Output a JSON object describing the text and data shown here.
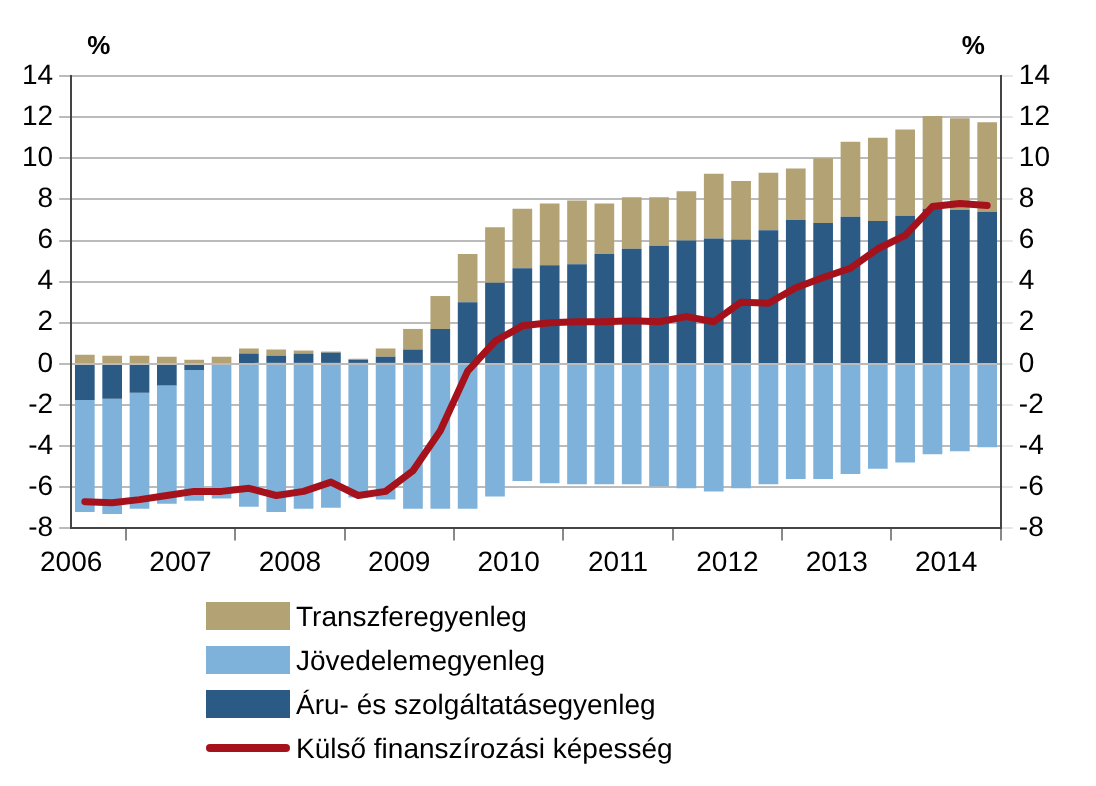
{
  "chart_data": {
    "type": "bar",
    "stacked": true,
    "ylabel": "%",
    "y2label": "%",
    "x": [
      2006.125,
      2006.375,
      2006.625,
      2006.875,
      2007.125,
      2007.375,
      2007.625,
      2007.875,
      2008.125,
      2008.375,
      2008.625,
      2008.875,
      2009.125,
      2009.375,
      2009.625,
      2009.875,
      2010.125,
      2010.375,
      2010.625,
      2010.875,
      2011.125,
      2011.375,
      2011.625,
      2011.875,
      2012.125,
      2012.375,
      2012.625,
      2012.875,
      2013.125,
      2013.375,
      2013.625,
      2013.875,
      2014.125,
      2014.375
    ],
    "xlim": [
      2006,
      2014.5
    ],
    "xticks": [
      2006,
      2007,
      2008,
      2009,
      2010,
      2011,
      2012,
      2013,
      2014
    ],
    "ylim": [
      -8,
      14
    ],
    "yticks": [
      -8,
      -6,
      -4,
      -2,
      0,
      2,
      4,
      6,
      8,
      10,
      12,
      14
    ],
    "y2lim": [
      -8,
      14
    ],
    "y2ticks": [
      -8,
      -6,
      -4,
      -2,
      0,
      2,
      4,
      6,
      8,
      10,
      12,
      14
    ],
    "grid": "y",
    "legend": "bottom",
    "series": [
      {
        "name": "Áru- és szolgáltatásegyenleg",
        "color": "#2b5a85",
        "values": [
          -1.75,
          -1.7,
          -1.4,
          -1.05,
          -0.3,
          0,
          0.5,
          0.4,
          0.5,
          0.55,
          0.2,
          0.35,
          0.7,
          1.7,
          3.0,
          3.95,
          4.65,
          4.8,
          4.85,
          5.35,
          5.6,
          5.75,
          6.0,
          6.1,
          6.05,
          6.5,
          7.0,
          6.85,
          7.15,
          6.95,
          7.2,
          7.55,
          7.5,
          7.4
        ]
      },
      {
        "name": "Jövedelemegyenleg",
        "color": "#7fb2da",
        "values": [
          -5.45,
          -5.6,
          -5.65,
          -5.75,
          -6.35,
          -6.55,
          -6.95,
          -7.2,
          -7.05,
          -7.0,
          -6.5,
          -6.6,
          -7.05,
          -7.05,
          -7.05,
          -6.45,
          -5.7,
          -5.8,
          -5.85,
          -5.85,
          -5.85,
          -5.95,
          -6.05,
          -6.2,
          -6.05,
          -5.85,
          -5.6,
          -5.6,
          -5.35,
          -5.1,
          -4.8,
          -4.4,
          -4.25,
          -4.05
        ]
      },
      {
        "name": "Transzferegyenleg",
        "color": "#b3a274",
        "values": [
          0.45,
          0.4,
          0.4,
          0.35,
          0.2,
          0.35,
          0.25,
          0.3,
          0.15,
          0.05,
          0.05,
          0.4,
          1.0,
          1.6,
          2.35,
          2.7,
          2.9,
          3.0,
          3.1,
          2.45,
          2.5,
          2.35,
          2.4,
          3.15,
          2.85,
          2.8,
          2.5,
          3.15,
          3.65,
          4.05,
          4.2,
          4.5,
          4.45,
          4.35
        ]
      },
      {
        "name": "Külső finanszírozási képesség",
        "type": "line",
        "color": "#a5121b",
        "values": [
          -6.7,
          -6.75,
          -6.6,
          -6.4,
          -6.2,
          -6.2,
          -6.05,
          -6.4,
          -6.2,
          -5.75,
          -6.4,
          -6.2,
          -5.2,
          -3.25,
          -0.35,
          1.1,
          1.85,
          2.0,
          2.05,
          2.05,
          2.1,
          2.05,
          2.3,
          2.05,
          3.0,
          2.95,
          3.7,
          4.2,
          4.65,
          5.6,
          6.25,
          7.65,
          7.8,
          7.7
        ]
      }
    ]
  }
}
